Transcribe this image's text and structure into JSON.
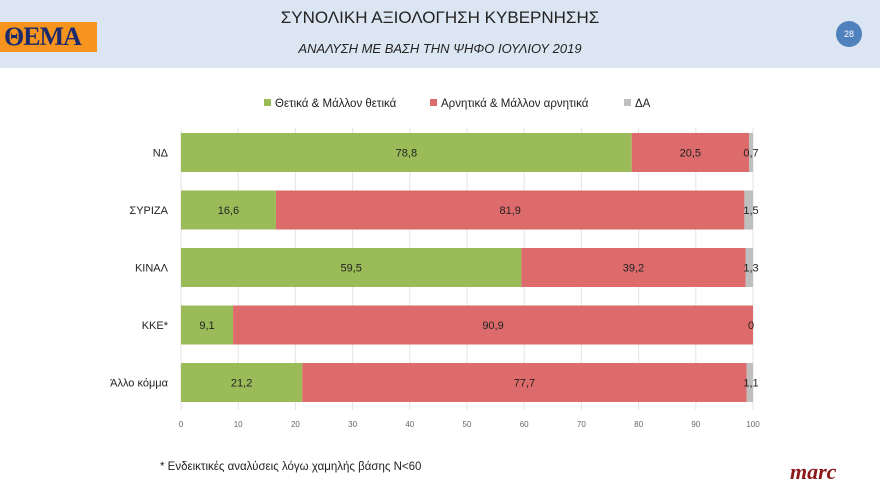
{
  "header": {
    "logo": "ΘΕΜΑ",
    "title": "ΣΥΝΟΛΙΚΗ ΑΞΙΟΛΟΓΗΣΗ ΚΥΒΕΡΝΗΣΗΣ",
    "subtitle": "ΑΝΑΛΥΣΗ ΜΕ ΒΑΣΗ ΤΗΝ ΨΗΦΟ ΙΟΥΛΙΟΥ 2019",
    "page_number": "28"
  },
  "footer": {
    "note": "* Ενδεικτικές αναλύσεις λόγω χαμηλής βάσης Ν<60",
    "brand": "marc"
  },
  "chart_data": {
    "type": "bar",
    "orientation": "horizontal",
    "stacked": true,
    "categories": [
      "ΝΔ",
      "ΣΥΡΙΖΑ",
      "ΚΙΝΑΛ",
      "ΚΚΕ*",
      "Άλλο κόμμα"
    ],
    "series": [
      {
        "name": "Θετικά & Μάλλον θετικά",
        "color": "#9bbb59",
        "values": [
          78.8,
          16.6,
          59.5,
          9.1,
          21.2
        ]
      },
      {
        "name": "Αρνητικά & Μάλλον αρνητικά",
        "color": "#dd6b6b",
        "values": [
          20.5,
          81.9,
          39.2,
          90.9,
          77.7
        ]
      },
      {
        "name": "ΔΑ",
        "color": "#bfbfbf",
        "values": [
          0.7,
          1.5,
          1.3,
          0,
          1.1
        ]
      }
    ],
    "data_labels": [
      [
        "78,8",
        "20,5",
        "0,7"
      ],
      [
        "16,6",
        "81,9",
        "1,5"
      ],
      [
        "59,5",
        "39,2",
        "1,3"
      ],
      [
        "9,1",
        "90,9",
        "0"
      ],
      [
        "21,2",
        "77,7",
        "1,1"
      ]
    ],
    "xlim": [
      0,
      100
    ],
    "xticks": [
      "0",
      "10",
      "20",
      "30",
      "40",
      "50",
      "60",
      "70",
      "80",
      "90",
      "100"
    ],
    "grid": true,
    "legend": "top"
  }
}
